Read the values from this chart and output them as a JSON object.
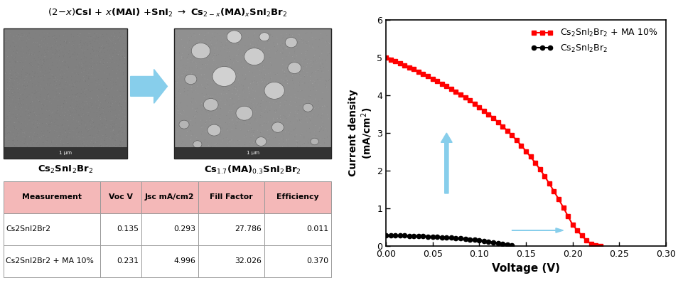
{
  "xlabel": "Voltage (V)",
  "ylabel": "Current density\n(mA/cm$^2$)",
  "xlim": [
    0,
    0.3
  ],
  "ylim": [
    0,
    6
  ],
  "xticks": [
    0.0,
    0.05,
    0.1,
    0.15,
    0.2,
    0.25,
    0.3
  ],
  "yticks": [
    0,
    1,
    2,
    3,
    4,
    5,
    6
  ],
  "legend_ma": "Cs$_2$SnI$_2$Br$_2$ + MA 10%",
  "legend_cs": "Cs$_2$SnI$_2$Br$_2$",
  "red_color": "#FF0000",
  "black_color": "#000000",
  "arrow_color": "#87CEEB",
  "table_header_bg": "#F4B8B8",
  "table_data": [
    [
      "Measurement",
      "Voc V",
      "Jsc mA/cm2",
      "Fill Factor",
      "Efficiency"
    ],
    [
      "Cs2SnI2Br2",
      "0.135",
      "0.293",
      "27.786",
      "0.011"
    ],
    [
      "Cs2SnI2Br2 + MA 10%",
      "0.231",
      "4.996",
      "32.026",
      "0.370"
    ]
  ],
  "red_voltage": [
    0.0,
    0.005,
    0.01,
    0.015,
    0.02,
    0.025,
    0.03,
    0.035,
    0.04,
    0.045,
    0.05,
    0.055,
    0.06,
    0.065,
    0.07,
    0.075,
    0.08,
    0.085,
    0.09,
    0.095,
    0.1,
    0.105,
    0.11,
    0.115,
    0.12,
    0.125,
    0.13,
    0.135,
    0.14,
    0.145,
    0.15,
    0.155,
    0.16,
    0.165,
    0.17,
    0.175,
    0.18,
    0.185,
    0.19,
    0.195,
    0.2,
    0.205,
    0.21,
    0.215,
    0.22,
    0.225,
    0.23
  ],
  "red_current": [
    4.996,
    4.95,
    4.9,
    4.85,
    4.8,
    4.74,
    4.69,
    4.63,
    4.57,
    4.51,
    4.44,
    4.38,
    4.31,
    4.24,
    4.17,
    4.09,
    4.02,
    3.94,
    3.86,
    3.77,
    3.68,
    3.59,
    3.5,
    3.4,
    3.29,
    3.18,
    3.06,
    2.94,
    2.81,
    2.67,
    2.52,
    2.37,
    2.21,
    2.04,
    1.86,
    1.66,
    1.46,
    1.25,
    1.03,
    0.8,
    0.57,
    0.42,
    0.28,
    0.15,
    0.06,
    0.02,
    0.0
  ],
  "black_voltage": [
    0.0,
    0.005,
    0.01,
    0.015,
    0.02,
    0.025,
    0.03,
    0.035,
    0.04,
    0.045,
    0.05,
    0.055,
    0.06,
    0.065,
    0.07,
    0.075,
    0.08,
    0.085,
    0.09,
    0.095,
    0.1,
    0.105,
    0.11,
    0.115,
    0.12,
    0.125,
    0.13,
    0.135
  ],
  "black_current": [
    0.293,
    0.29,
    0.287,
    0.284,
    0.281,
    0.277,
    0.273,
    0.269,
    0.264,
    0.259,
    0.253,
    0.247,
    0.24,
    0.232,
    0.224,
    0.215,
    0.205,
    0.194,
    0.182,
    0.169,
    0.155,
    0.14,
    0.124,
    0.107,
    0.089,
    0.07,
    0.05,
    0.028
  ]
}
